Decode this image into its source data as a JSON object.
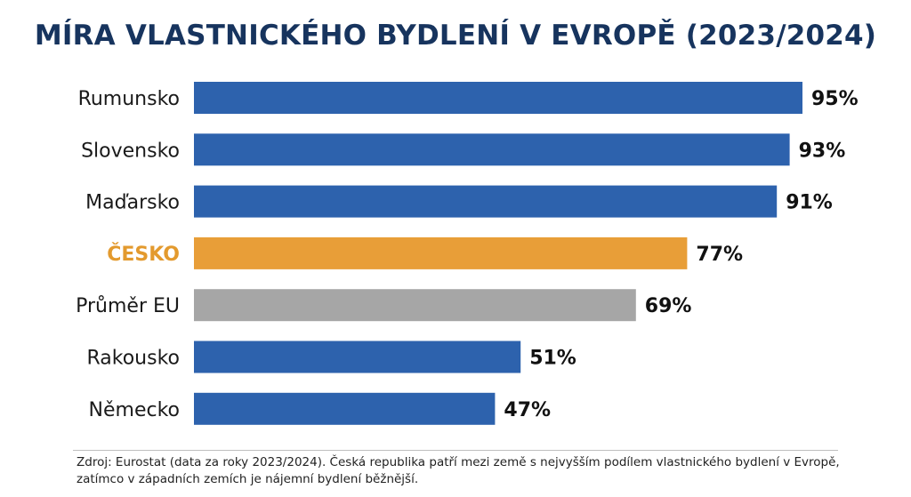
{
  "chart_data": {
    "type": "bar",
    "orientation": "horizontal",
    "title": "MÍRA VLASTNICKÉHO BYDLENÍ V EVROPĚ (2023/2024)",
    "categories": [
      "Rumunsko",
      "Slovensko",
      "Maďarsko",
      "ČESKO",
      "Průměr EU",
      "Rakousko",
      "Německo"
    ],
    "values": [
      95,
      93,
      91,
      77,
      69,
      51,
      47
    ],
    "value_labels": [
      "95%",
      "93%",
      "91%",
      "77%",
      "69%",
      "51%",
      "47%"
    ],
    "unit": "%",
    "xlim": [
      0,
      100
    ],
    "highlight_category": "ČESKO",
    "colors": {
      "default": "#2d62ad",
      "highlight": "#e89e38",
      "eu_average": "#a6a6a6",
      "title": "#17345e",
      "highlight_label": "#e39a2e"
    },
    "bar_color_roles": [
      "default",
      "default",
      "default",
      "highlight",
      "eu_average",
      "default",
      "default"
    ],
    "grid": false,
    "legend": "none"
  },
  "footnote": "Zdroj: Eurostat (data za roky 2023/2024). Česká republika patří mezi země s nejvyšším podílem vlastnického bydlení v Evropě, zatímco v západních zemích je nájemní bydlení běžnější."
}
